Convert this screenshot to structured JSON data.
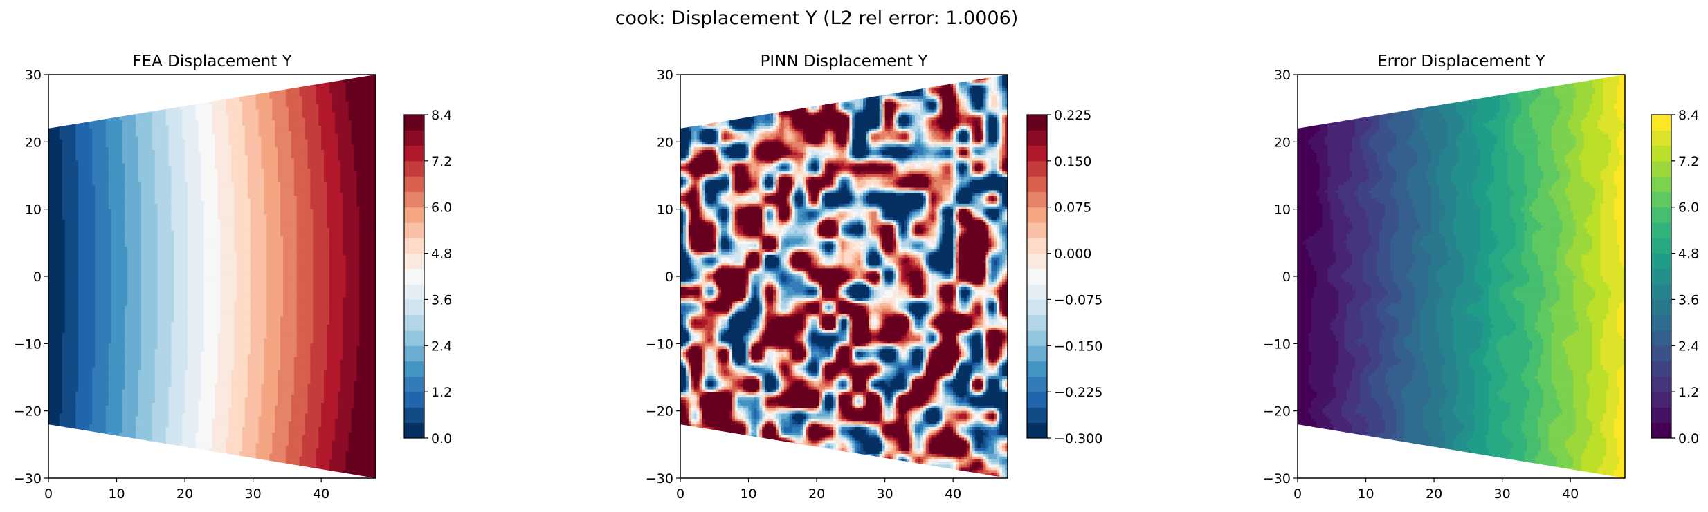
{
  "figure": {
    "suptitle": "cook: Displacement Y (L2 rel error: 1.0006)"
  },
  "chart_data": [
    {
      "type": "heatmap",
      "title": "FEA Displacement Y",
      "colormap": "RdBu_r",
      "xlim": [
        0,
        48
      ],
      "ylim": [
        -30,
        30
      ],
      "x_ticks": [
        0,
        10,
        20,
        30,
        40
      ],
      "y_ticks": [
        30,
        20,
        10,
        0,
        -10,
        -20,
        -30
      ],
      "domain_polygon": [
        [
          0,
          -22
        ],
        [
          48,
          -30
        ],
        [
          48,
          30
        ],
        [
          0,
          22
        ]
      ],
      "field": "smooth gradient increasing with x (curved contours)",
      "colorbar": {
        "range": [
          0,
          8.4
        ],
        "levels": 21,
        "ticks": [
          "0.0",
          "1.2",
          "2.4",
          "3.6",
          "4.8",
          "6.0",
          "7.2",
          "8.4"
        ]
      }
    },
    {
      "type": "heatmap",
      "title": "PINN Displacement Y",
      "colormap": "RdBu_r",
      "xlim": [
        0,
        48
      ],
      "ylim": [
        -30,
        30
      ],
      "x_ticks": [
        0,
        10,
        20,
        30,
        40
      ],
      "y_ticks": [
        30,
        20,
        10,
        0,
        -10,
        -20,
        -30
      ],
      "domain_polygon": [
        [
          0,
          -22
        ],
        [
          48,
          -30
        ],
        [
          48,
          30
        ],
        [
          0,
          22
        ]
      ],
      "field": "noisy random pattern",
      "colorbar": {
        "range": [
          -0.3,
          0.225
        ],
        "levels": 21,
        "ticks": [
          "0.225",
          "0.150",
          "0.075",
          "0.000",
          "−0.075",
          "−0.150",
          "−0.225",
          "−0.300"
        ]
      }
    },
    {
      "type": "heatmap",
      "title": "Error Displacement Y",
      "colormap": "viridis",
      "xlim": [
        0,
        48
      ],
      "ylim": [
        -30,
        30
      ],
      "x_ticks": [
        0,
        10,
        20,
        30,
        40
      ],
      "y_ticks": [
        30,
        20,
        10,
        0,
        -10,
        -20,
        -30
      ],
      "domain_polygon": [
        [
          0,
          -22
        ],
        [
          48,
          -30
        ],
        [
          48,
          30
        ],
        [
          0,
          22
        ]
      ],
      "field": "gradient increasing with x (slightly noisy contours)",
      "colorbar": {
        "range": [
          0,
          8.4
        ],
        "levels": 21,
        "ticks": [
          "0.0",
          "1.2",
          "2.4",
          "3.6",
          "4.8",
          "6.0",
          "7.2",
          "8.4"
        ]
      }
    }
  ]
}
